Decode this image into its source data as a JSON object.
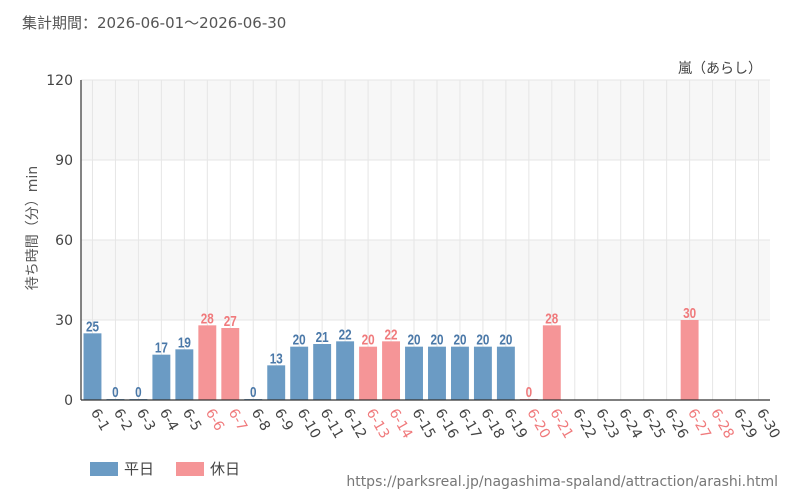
{
  "period_label": "集計期間：2026-06-01～2026-06-30",
  "source_url": "https://parksreal.jp/nagashima-spaland/attraction/arashi.html",
  "legend": {
    "weekday": "平日",
    "holiday": "休日"
  },
  "colors": {
    "weekday": "#6b9bc4",
    "holiday": "#f59597",
    "weekday_label": "#4a78a8",
    "holiday_label": "#f07a7c",
    "axis_text": "#444444",
    "grid": "#e6e6e6",
    "band": "#f7f7f7"
  },
  "chart_data": {
    "type": "bar",
    "title": "嵐（あらし）",
    "ylabel": "待ち時間（分）min",
    "xlabel": "",
    "ylim": [
      0,
      120
    ],
    "yticks": [
      0,
      30,
      60,
      90,
      120
    ],
    "grid": true,
    "legend_position": "bottom-left",
    "categories": [
      "6-1",
      "6-2",
      "6-3",
      "6-4",
      "6-5",
      "6-6",
      "6-7",
      "6-8",
      "6-9",
      "6-10",
      "6-11",
      "6-12",
      "6-13",
      "6-14",
      "6-15",
      "6-16",
      "6-17",
      "6-18",
      "6-19",
      "6-20",
      "6-21",
      "6-22",
      "6-23",
      "6-24",
      "6-25",
      "6-26",
      "6-27",
      "6-28",
      "6-29",
      "6-30"
    ],
    "values": [
      25,
      0,
      0,
      17,
      19,
      28,
      27,
      0,
      13,
      20,
      21,
      22,
      20,
      22,
      20,
      20,
      20,
      20,
      20,
      0,
      28,
      null,
      null,
      null,
      null,
      null,
      30,
      null,
      null,
      null
    ],
    "day_type": [
      "weekday",
      "weekday",
      "weekday",
      "weekday",
      "weekday",
      "holiday",
      "holiday",
      "weekday",
      "weekday",
      "weekday",
      "weekday",
      "weekday",
      "holiday",
      "holiday",
      "weekday",
      "weekday",
      "weekday",
      "weekday",
      "weekday",
      "holiday",
      "holiday",
      "weekday",
      "weekday",
      "weekday",
      "weekday",
      "weekday",
      "holiday",
      "holiday",
      "weekday",
      "weekday"
    ]
  }
}
